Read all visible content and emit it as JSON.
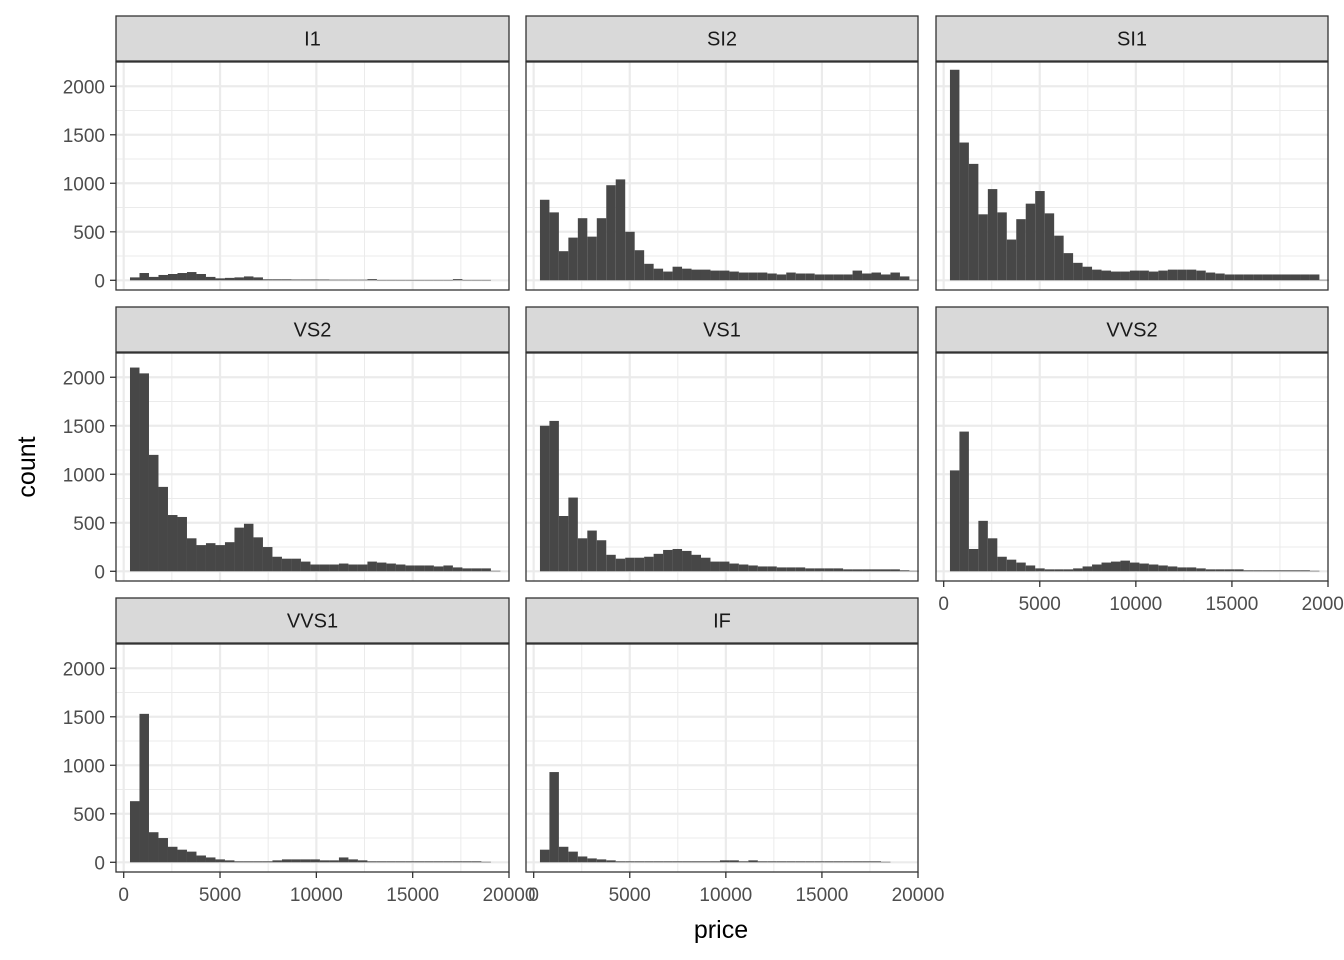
{
  "chart_data": {
    "type": "bar",
    "subtype": "faceted-histogram",
    "xlabel": "price",
    "ylabel": "count",
    "xlim": [
      -400,
      20000
    ],
    "ylim": [
      -100,
      2250
    ],
    "x_ticks": [
      0,
      5000,
      10000,
      15000,
      20000
    ],
    "y_ticks": [
      0,
      500,
      1000,
      1500,
      2000
    ],
    "grid": true,
    "bin_start": 326,
    "bin_width": 493,
    "colors": {
      "bar": "#474747",
      "strip": "#d9d9d9",
      "border": "#333333",
      "grid": "#ebebeb"
    },
    "facets": [
      {
        "name": "I1",
        "values": [
          30,
          75,
          35,
          55,
          65,
          75,
          85,
          65,
          35,
          20,
          25,
          30,
          40,
          30,
          10,
          10,
          10,
          8,
          8,
          8,
          8,
          6,
          6,
          6,
          6,
          12,
          4,
          4,
          4,
          4,
          4,
          4,
          4,
          4,
          12,
          4,
          4,
          4,
          0
        ]
      },
      {
        "name": "SI2",
        "values": [
          830,
          700,
          300,
          440,
          640,
          450,
          640,
          980,
          1040,
          500,
          310,
          170,
          120,
          90,
          140,
          120,
          110,
          110,
          100,
          100,
          90,
          80,
          80,
          80,
          70,
          60,
          80,
          70,
          70,
          60,
          60,
          60,
          60,
          100,
          70,
          80,
          60,
          80,
          40,
          5
        ]
      },
      {
        "name": "SI1",
        "values": [
          2170,
          1420,
          1200,
          680,
          940,
          700,
          420,
          630,
          790,
          920,
          690,
          460,
          280,
          180,
          140,
          110,
          100,
          90,
          90,
          100,
          100,
          90,
          100,
          110,
          110,
          110,
          100,
          80,
          70,
          60,
          60,
          60,
          60,
          60,
          60,
          60,
          60,
          60,
          60,
          5
        ]
      },
      {
        "name": "VS2",
        "values": [
          2100,
          2040,
          1200,
          870,
          580,
          560,
          340,
          270,
          290,
          270,
          300,
          450,
          490,
          350,
          250,
          150,
          130,
          130,
          100,
          70,
          70,
          70,
          80,
          70,
          70,
          100,
          90,
          80,
          70,
          60,
          60,
          60,
          50,
          60,
          40,
          30,
          30,
          30,
          5
        ]
      },
      {
        "name": "VS1",
        "values": [
          1500,
          1550,
          570,
          760,
          340,
          420,
          320,
          170,
          130,
          140,
          140,
          150,
          180,
          220,
          230,
          210,
          170,
          140,
          100,
          100,
          80,
          70,
          60,
          50,
          50,
          40,
          40,
          40,
          30,
          30,
          30,
          30,
          20,
          20,
          20,
          20,
          20,
          20,
          10,
          5
        ]
      },
      {
        "name": "VVS2",
        "values": [
          1040,
          1440,
          230,
          520,
          340,
          150,
          120,
          90,
          60,
          30,
          20,
          20,
          20,
          30,
          50,
          70,
          90,
          100,
          110,
          90,
          80,
          70,
          60,
          50,
          40,
          40,
          30,
          20,
          20,
          20,
          20,
          10,
          10,
          10,
          10,
          10,
          10,
          10,
          5
        ]
      },
      {
        "name": "VVS1",
        "values": [
          630,
          1530,
          310,
          250,
          160,
          130,
          110,
          70,
          50,
          30,
          20,
          10,
          10,
          10,
          10,
          20,
          30,
          30,
          30,
          30,
          20,
          20,
          50,
          30,
          20,
          10,
          10,
          10,
          10,
          10,
          10,
          10,
          10,
          10,
          10,
          10,
          10,
          5
        ]
      },
      {
        "name": "IF",
        "values": [
          130,
          930,
          160,
          110,
          60,
          40,
          30,
          20,
          10,
          10,
          10,
          10,
          10,
          10,
          10,
          10,
          10,
          10,
          10,
          20,
          20,
          10,
          20,
          10,
          10,
          10,
          10,
          10,
          10,
          10,
          10,
          10,
          10,
          10,
          10,
          10,
          5
        ]
      }
    ]
  }
}
